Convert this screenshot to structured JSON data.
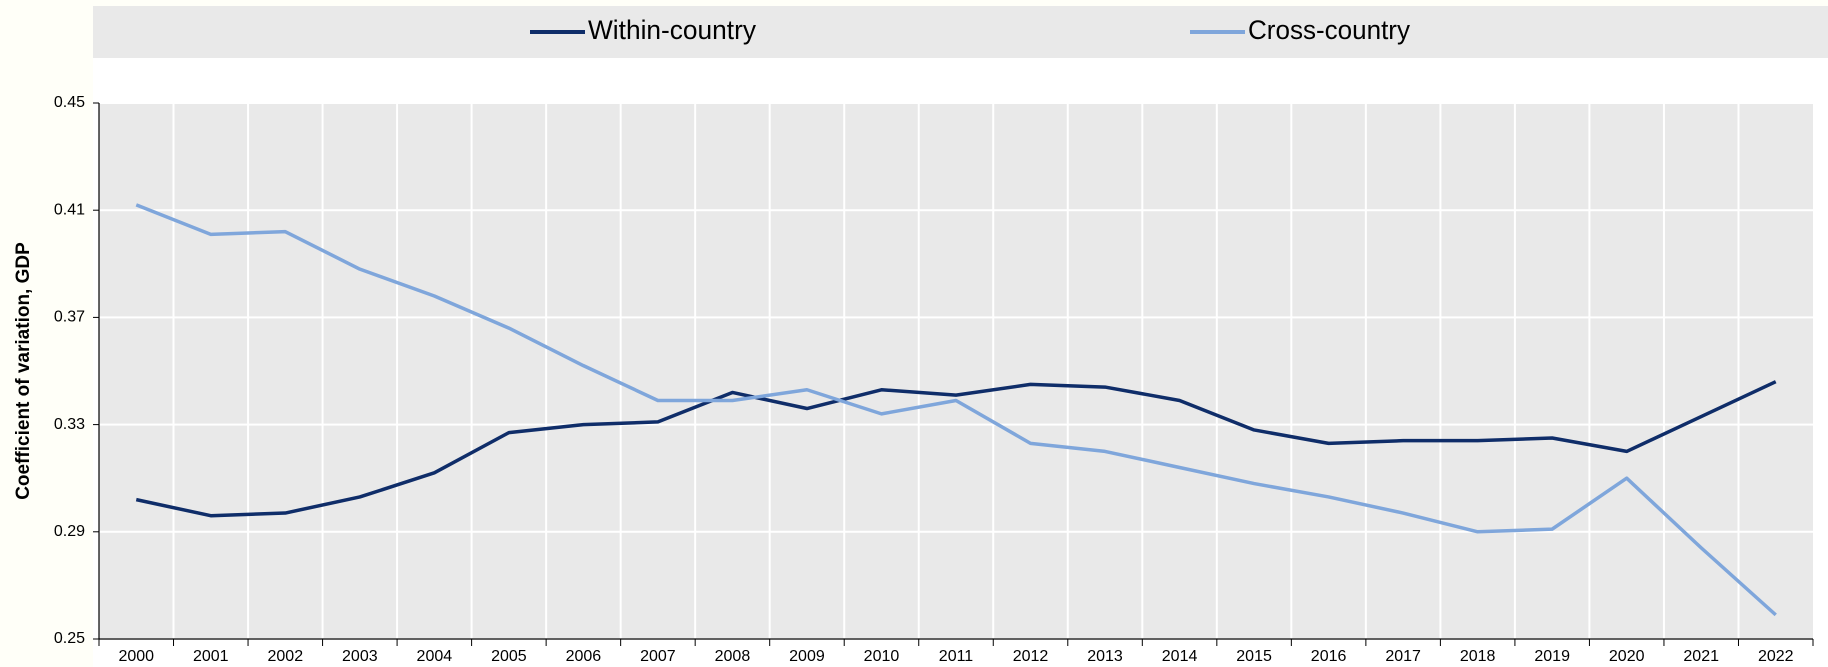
{
  "chart_data": {
    "type": "line",
    "y_label": "Coefficient of variation, GDP",
    "categories": [
      "2000",
      "2001",
      "2002",
      "2003",
      "2004",
      "2005",
      "2006",
      "2007",
      "2008",
      "2009",
      "2010",
      "2011",
      "2012",
      "2013",
      "2014",
      "2015",
      "2016",
      "2017",
      "2018",
      "2019",
      "2020",
      "2021",
      "2022"
    ],
    "series": [
      {
        "name": "Within-country",
        "color": "#0f2d69",
        "values": [
          0.302,
          0.296,
          0.297,
          0.303,
          0.312,
          0.327,
          0.33,
          0.331,
          0.342,
          0.336,
          0.343,
          0.341,
          0.345,
          0.344,
          0.339,
          0.328,
          0.323,
          0.324,
          0.324,
          0.325,
          0.32,
          0.333,
          0.346
        ]
      },
      {
        "name": "Cross-country",
        "color": "#7fa6db",
        "values": [
          0.412,
          0.401,
          0.402,
          0.388,
          0.378,
          0.366,
          0.352,
          0.339,
          0.339,
          0.343,
          0.334,
          0.339,
          0.323,
          0.32,
          0.314,
          0.308,
          0.303,
          0.297,
          0.29,
          0.291,
          0.31,
          0.284,
          0.259
        ]
      }
    ],
    "ylim": [
      0.25,
      0.45
    ],
    "yticks": [
      0.25,
      0.29,
      0.33,
      0.37,
      0.41,
      0.45
    ],
    "grid": true,
    "legend": "top"
  }
}
